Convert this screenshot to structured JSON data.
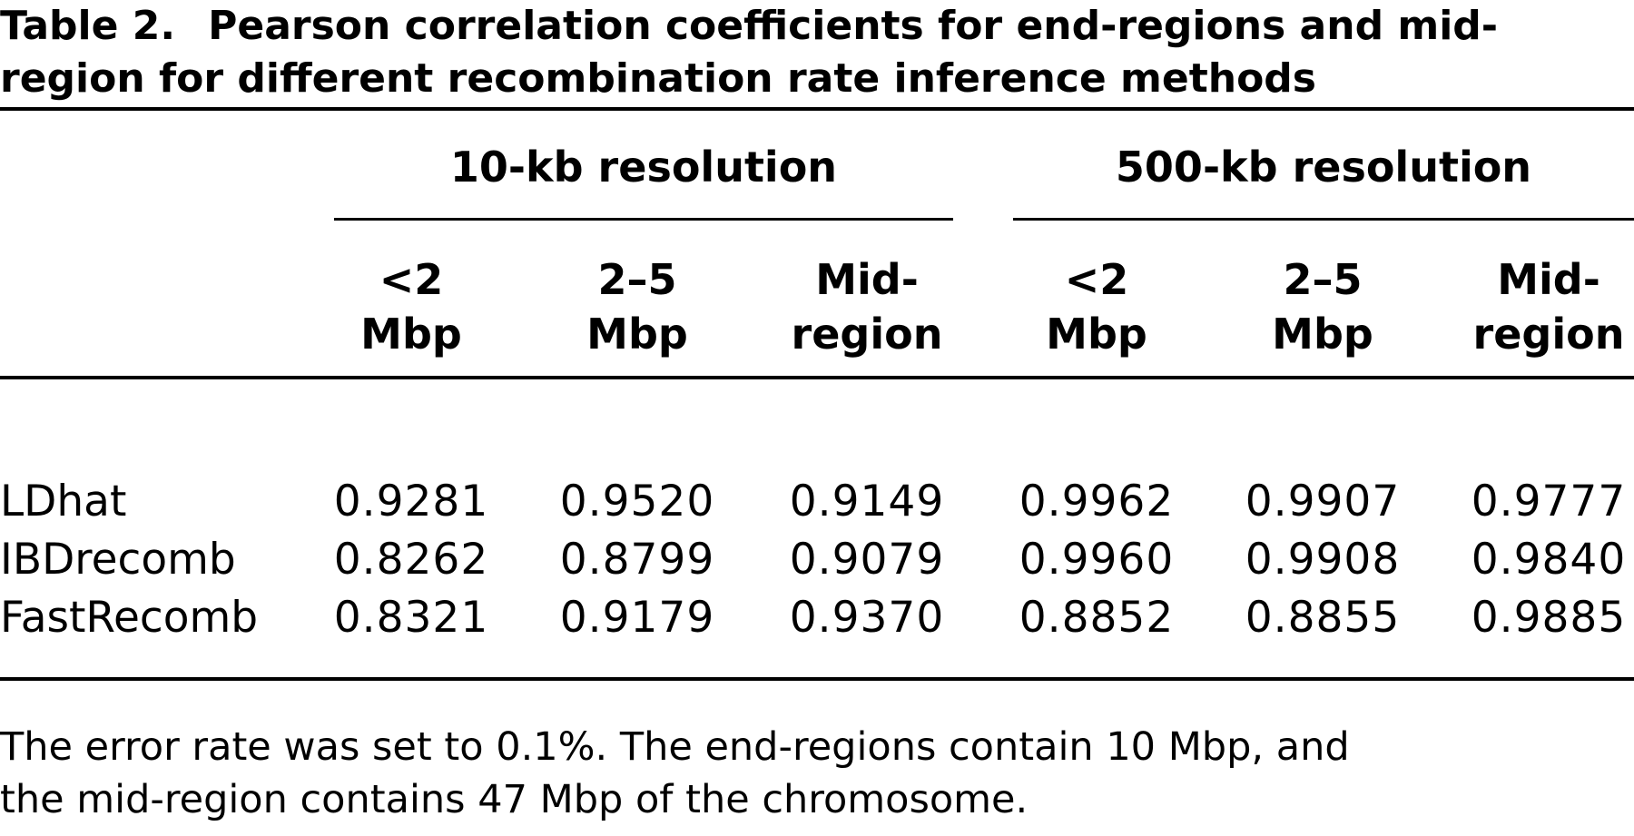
{
  "table": {
    "label": "Table 2.",
    "caption_line1": "Pearson correlation coefficients for end-regions and mid-",
    "caption_line2": "region for different recombination rate inference methods",
    "groups": [
      "10-kb resolution",
      "500-kb resolution"
    ],
    "columns": [
      [
        "<2",
        "Mbp"
      ],
      [
        "2–5",
        "Mbp"
      ],
      [
        "Mid-",
        "region"
      ],
      [
        "<2",
        "Mbp"
      ],
      [
        "2–5",
        "Mbp"
      ],
      [
        "Mid-",
        "region"
      ]
    ],
    "rows": [
      {
        "method": "LDhat",
        "values": [
          "0.9281",
          "0.9520",
          "0.9149",
          "0.9962",
          "0.9907",
          "0.9777"
        ]
      },
      {
        "method": "IBDrecomb",
        "values": [
          "0.8262",
          "0.8799",
          "0.9079",
          "0.9960",
          "0.9908",
          "0.9840"
        ]
      },
      {
        "method": "FastRecomb",
        "values": [
          "0.8321",
          "0.9179",
          "0.9370",
          "0.8852",
          "0.8855",
          "0.9885"
        ]
      }
    ],
    "footnote_line1": "The error rate was set to 0.1%. The end-regions contain 10 Mbp, and",
    "footnote_line2": "the mid-region contains 47 Mbp of the chromosome."
  }
}
